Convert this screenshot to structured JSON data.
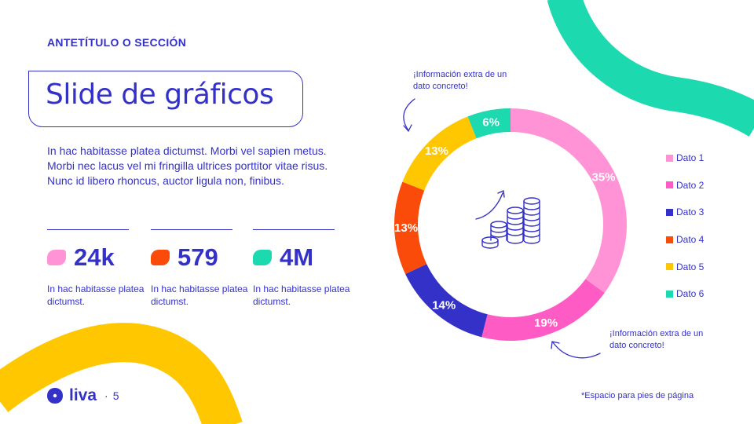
{
  "colors": {
    "primary": "#3431c9",
    "teal": "#1dd9b0",
    "yellow": "#ffc700",
    "pink": "#ff93d6",
    "magenta": "#ff5bc4",
    "orange": "#fa4b0a"
  },
  "header": {
    "eyebrow": "ANTETÍTULO O SECCIÓN",
    "title": "Slide de gráficos"
  },
  "body": {
    "paragraph": "In hac habitasse platea dictumst. Morbi vel sapien metus. Morbi nec lacus vel mi fringilla ultrices porttitor vitae risus. Nunc id libero rhoncus, auctor ligula non, finibus."
  },
  "stats": [
    {
      "value": "24k",
      "caption": "In hac habitasse platea dictumst.",
      "color": "#ff93d6"
    },
    {
      "value": "579",
      "caption": "In hac habitasse platea dictumst.",
      "color": "#fa4b0a"
    },
    {
      "value": "4M",
      "caption": "In hac habitasse platea dictumst.",
      "color": "#1dd9b0"
    }
  ],
  "chart_data": {
    "type": "pie",
    "categories": [
      "Dato 1",
      "Dato 2",
      "Dato 3",
      "Dato 4",
      "Dato 5",
      "Dato 6"
    ],
    "values": [
      35,
      19,
      14,
      13,
      13,
      6
    ],
    "labels": [
      "35%",
      "19%",
      "14%",
      "13%",
      "13%",
      "6%"
    ],
    "colors": [
      "#ff93d6",
      "#ff5bc4",
      "#3431c9",
      "#fa4b0a",
      "#ffc700",
      "#1dd9b0"
    ],
    "legend": "right",
    "center_icon": "coins-growth-icon"
  },
  "annotations": {
    "top": "¡Información extra de un dato concreto!",
    "bottom": "¡Información extra de un dato concreto!"
  },
  "footer": {
    "brand": "liva",
    "separator": "·",
    "page": "5",
    "note": "*Espacio para pies de página",
    "logo_icon": "liva-flower-icon"
  }
}
